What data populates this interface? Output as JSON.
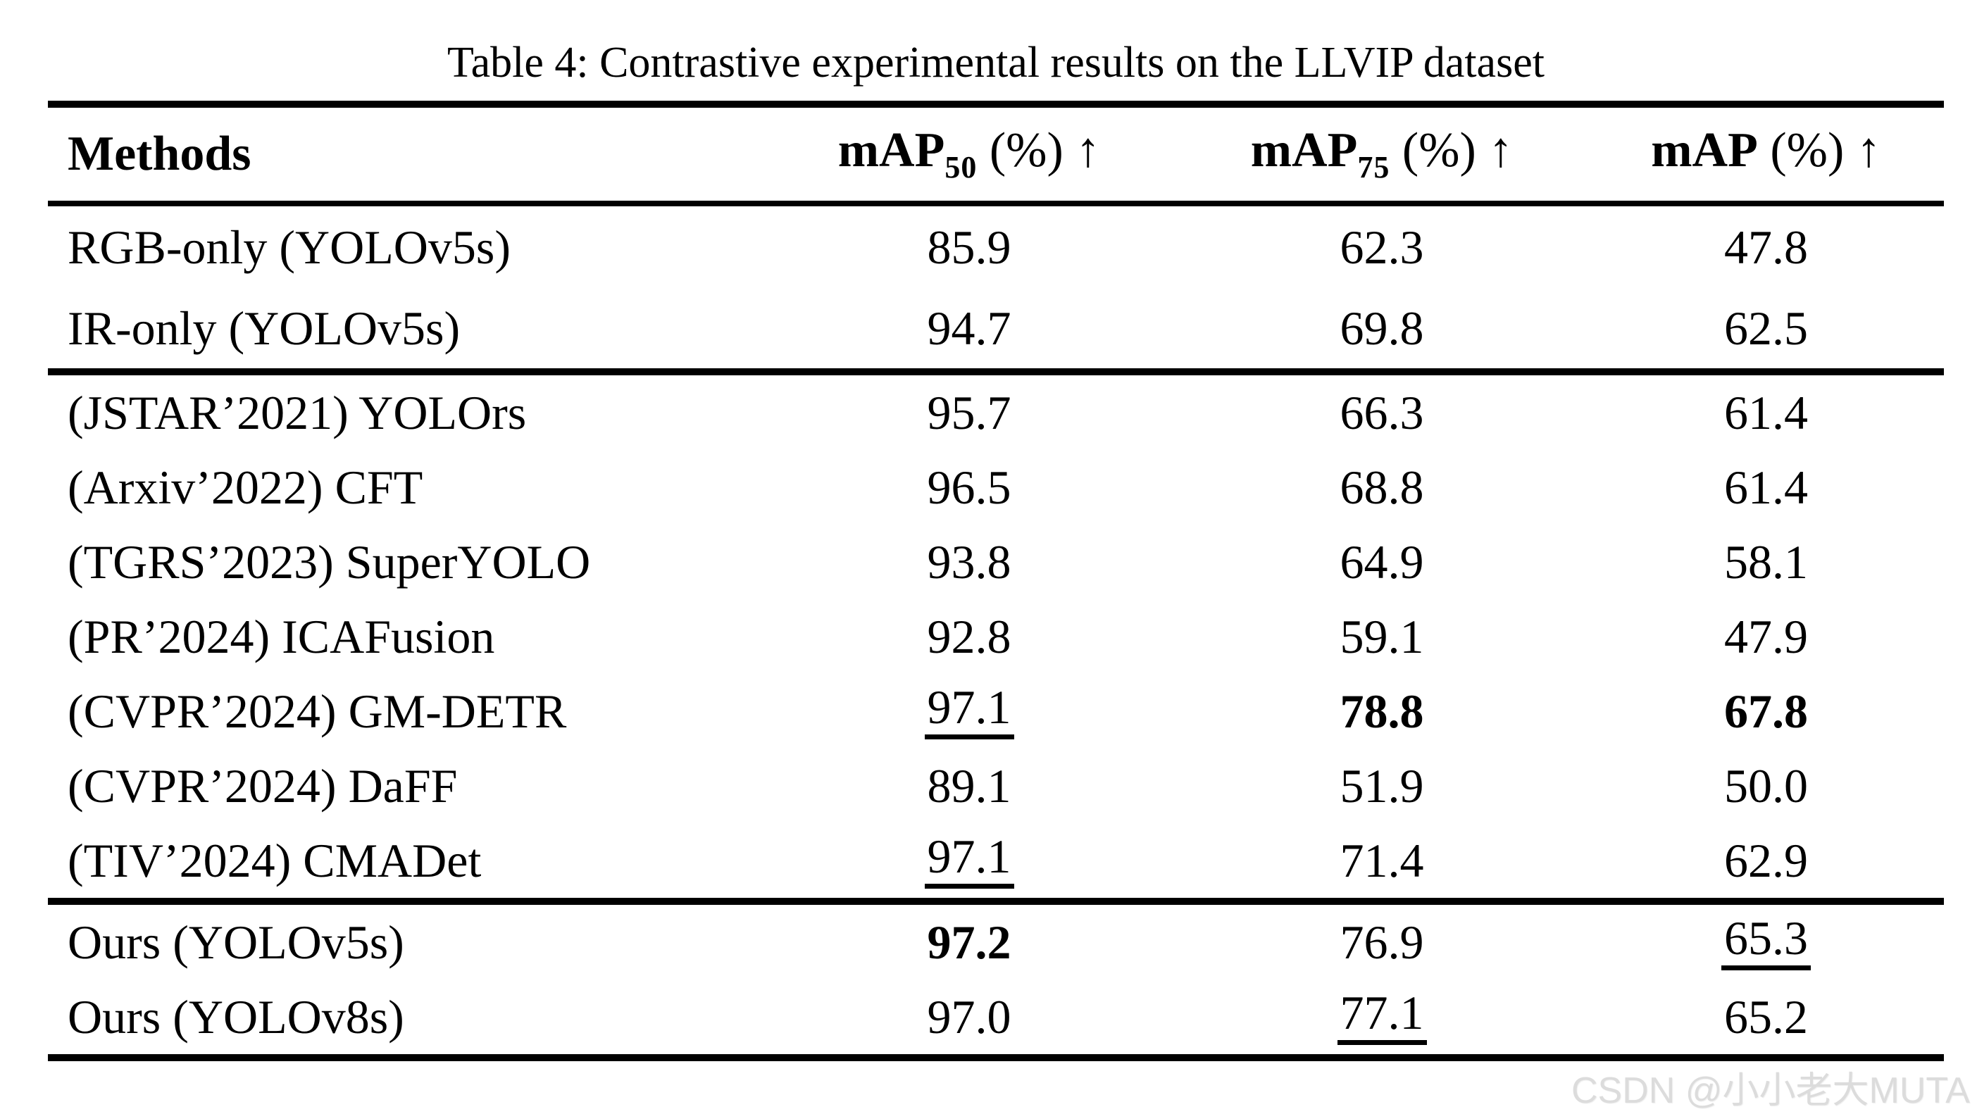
{
  "title": "Table 4: Contrastive experimental results on the LLVIP dataset",
  "colors": {
    "text": "#000000",
    "background": "#ffffff",
    "watermark": "#dcdcdc"
  },
  "header": {
    "methods": "Methods",
    "metrics": [
      {
        "base": "mAP",
        "sub": "50",
        "rest": " (%) ↑"
      },
      {
        "base": "mAP",
        "sub": "75",
        "rest": " (%) ↑"
      },
      {
        "base": "mAP",
        "sub": "",
        "rest": " (%) ↑"
      }
    ]
  },
  "groups": [
    {
      "rows": [
        {
          "method": "RGB-only (YOLOv5s)",
          "values": [
            {
              "text": "85.9",
              "emph": "normal"
            },
            {
              "text": "62.3",
              "emph": "normal"
            },
            {
              "text": "47.8",
              "emph": "normal"
            }
          ]
        },
        {
          "method": "IR-only (YOLOv5s)",
          "values": [
            {
              "text": "94.7",
              "emph": "normal"
            },
            {
              "text": "69.8",
              "emph": "normal"
            },
            {
              "text": "62.5",
              "emph": "normal"
            }
          ]
        }
      ]
    },
    {
      "rows": [
        {
          "method": "(JSTAR’2021) YOLOrs",
          "values": [
            {
              "text": "95.7",
              "emph": "normal"
            },
            {
              "text": "66.3",
              "emph": "normal"
            },
            {
              "text": "61.4",
              "emph": "normal"
            }
          ]
        },
        {
          "method": "(Arxiv’2022) CFT",
          "values": [
            {
              "text": "96.5",
              "emph": "normal"
            },
            {
              "text": "68.8",
              "emph": "normal"
            },
            {
              "text": "61.4",
              "emph": "normal"
            }
          ]
        },
        {
          "method": "(TGRS’2023) SuperYOLO",
          "values": [
            {
              "text": "93.8",
              "emph": "normal"
            },
            {
              "text": "64.9",
              "emph": "normal"
            },
            {
              "text": "58.1",
              "emph": "normal"
            }
          ]
        },
        {
          "method": "(PR’2024) ICAFusion",
          "values": [
            {
              "text": "92.8",
              "emph": "normal"
            },
            {
              "text": "59.1",
              "emph": "normal"
            },
            {
              "text": "47.9",
              "emph": "normal"
            }
          ]
        },
        {
          "method": "(CVPR’2024) GM-DETR",
          "values": [
            {
              "text": "97.1",
              "emph": "underline"
            },
            {
              "text": "78.8",
              "emph": "bold"
            },
            {
              "text": "67.8",
              "emph": "bold"
            }
          ]
        },
        {
          "method": "(CVPR’2024) DaFF",
          "values": [
            {
              "text": "89.1",
              "emph": "normal"
            },
            {
              "text": "51.9",
              "emph": "normal"
            },
            {
              "text": "50.0",
              "emph": "normal"
            }
          ]
        },
        {
          "method": "(TIV’2024) CMADet",
          "values": [
            {
              "text": "97.1",
              "emph": "underline"
            },
            {
              "text": "71.4",
              "emph": "normal"
            },
            {
              "text": "62.9",
              "emph": "normal"
            }
          ]
        }
      ]
    },
    {
      "rows": [
        {
          "method": "Ours (YOLOv5s)",
          "values": [
            {
              "text": "97.2",
              "emph": "bold"
            },
            {
              "text": "76.9",
              "emph": "normal"
            },
            {
              "text": "65.3",
              "emph": "underline"
            }
          ]
        },
        {
          "method": "Ours (YOLOv8s)",
          "values": [
            {
              "text": "97.0",
              "emph": "normal"
            },
            {
              "text": "77.1",
              "emph": "underline"
            },
            {
              "text": "65.2",
              "emph": "normal"
            }
          ]
        }
      ]
    }
  ],
  "watermark": "CSDN @小小老大MUTA"
}
